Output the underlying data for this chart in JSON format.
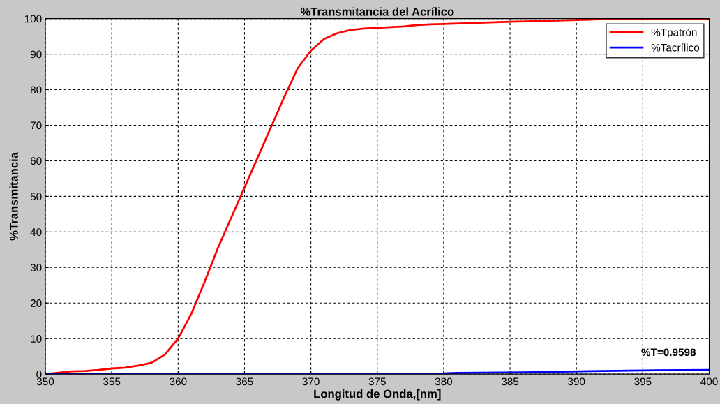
{
  "chart_data": {
    "type": "line",
    "title": "%Transmitancia del Acrílico",
    "xlabel": "Longitud de Onda,[nm]",
    "ylabel": "%Transmitancia",
    "xlim": [
      350,
      400
    ],
    "xticks": [
      350,
      355,
      360,
      365,
      370,
      375,
      380,
      385,
      390,
      395,
      400
    ],
    "ylim": [
      0,
      100
    ],
    "yticks": [
      0,
      10,
      20,
      30,
      40,
      50,
      60,
      70,
      80,
      90,
      100
    ],
    "grid": true,
    "legend": "top right",
    "annotations": [
      "%T=0.9598"
    ],
    "series": [
      {
        "name": "%Tpatrón",
        "color": "#ff0000",
        "x": [
          350,
          351,
          352,
          353,
          354,
          355,
          356,
          357,
          358,
          359,
          360,
          361,
          362,
          363,
          364,
          365,
          366,
          367,
          368,
          369,
          370,
          371,
          372,
          373,
          374,
          375,
          376,
          377,
          378,
          379,
          380,
          385,
          390,
          393.5,
          400
        ],
        "values": [
          0,
          0.4,
          0.8,
          0.9,
          1.2,
          1.6,
          1.8,
          2.4,
          3.2,
          5.5,
          10,
          17,
          26,
          35.5,
          44,
          52.5,
          61,
          69.5,
          78,
          86,
          91,
          94.3,
          95.9,
          96.8,
          97.2,
          97.4,
          97.6,
          97.8,
          98.2,
          98.4,
          98.5,
          99.1,
          99.6,
          100,
          100
        ]
      },
      {
        "name": "%Tacrílico",
        "color": "#0000ff",
        "x": [
          350,
          375,
          380,
          381,
          386,
          389,
          391,
          396,
          400
        ],
        "values": [
          0.05,
          0.1,
          0.2,
          0.35,
          0.5,
          0.7,
          0.85,
          1.1,
          1.2
        ]
      }
    ]
  }
}
